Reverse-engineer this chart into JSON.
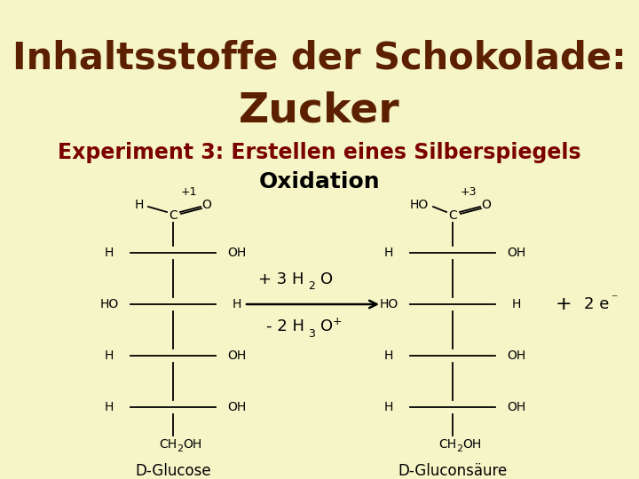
{
  "bg_color": "#f5f5c8",
  "title_line1": "Inhaltsstoffe der Schokolade:",
  "title_line2": "Zucker",
  "subtitle": "Experiment 3: Erstellen eines Silberspiegels",
  "reaction_title": "Oxidation",
  "title_color": "#5c2000",
  "subtitle_color": "#7b0000",
  "label_left": "D-Glucose",
  "label_right": "D-Gluconsäure",
  "oxidation_left": "+1",
  "oxidation_right": "+3"
}
